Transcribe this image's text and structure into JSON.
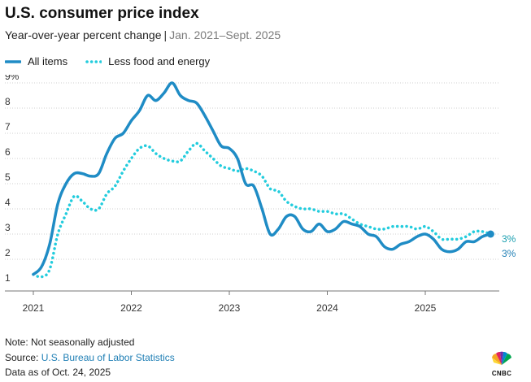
{
  "header": {
    "title": "U.S. consumer price index",
    "subtitle": "Year-over-year percent change",
    "separator": "|",
    "range": "Jan. 2021–Sept. 2025"
  },
  "footer": {
    "note": "Note: Not seasonally adjusted",
    "source_prefix": "Source: ",
    "source_name": "U.S. Bureau of Labor Statistics",
    "data_as_of": "Data as of Oct. 24, 2025",
    "logo_text": "CNBC"
  },
  "chart_data": {
    "type": "line",
    "x_label": "",
    "y_label": "",
    "x_range": [
      "2020-12",
      "2025-11"
    ],
    "y_range": [
      1,
      9
    ],
    "y_tick_labels": [
      "1",
      "2",
      "3",
      "4",
      "5",
      "6",
      "7",
      "8",
      "9%"
    ],
    "x_tick_labels": [
      "2021",
      "2022",
      "2023",
      "2024",
      "2025"
    ],
    "grid": true,
    "legend_position": "top-left",
    "x": [
      "2021-01",
      "2021-02",
      "2021-03",
      "2021-04",
      "2021-05",
      "2021-06",
      "2021-07",
      "2021-08",
      "2021-09",
      "2021-10",
      "2021-11",
      "2021-12",
      "2022-01",
      "2022-02",
      "2022-03",
      "2022-04",
      "2022-05",
      "2022-06",
      "2022-07",
      "2022-08",
      "2022-09",
      "2022-10",
      "2022-11",
      "2022-12",
      "2023-01",
      "2023-02",
      "2023-03",
      "2023-04",
      "2023-05",
      "2023-06",
      "2023-07",
      "2023-08",
      "2023-09",
      "2023-10",
      "2023-11",
      "2023-12",
      "2024-01",
      "2024-02",
      "2024-03",
      "2024-04",
      "2024-05",
      "2024-06",
      "2024-07",
      "2024-08",
      "2024-09",
      "2024-10",
      "2024-11",
      "2024-12",
      "2025-01",
      "2025-02",
      "2025-03",
      "2025-04",
      "2025-05",
      "2025-06",
      "2025-07",
      "2025-08",
      "2025-09"
    ],
    "series": [
      {
        "name": "All items",
        "color": "#1f8cc5",
        "style": "solid",
        "end_label": "3%",
        "values": [
          1.4,
          1.7,
          2.6,
          4.2,
          5.0,
          5.4,
          5.4,
          5.3,
          5.4,
          6.2,
          6.8,
          7.0,
          7.5,
          7.9,
          8.5,
          8.3,
          8.6,
          9.0,
          8.5,
          8.3,
          8.2,
          7.7,
          7.1,
          6.5,
          6.4,
          6.0,
          5.0,
          4.9,
          4.0,
          3.0,
          3.2,
          3.7,
          3.7,
          3.2,
          3.1,
          3.4,
          3.1,
          3.2,
          3.5,
          3.4,
          3.3,
          3.0,
          2.9,
          2.5,
          2.4,
          2.6,
          2.7,
          2.9,
          3.0,
          2.8,
          2.4,
          2.3,
          2.4,
          2.7,
          2.7,
          2.9,
          3.0
        ]
      },
      {
        "name": "Less food and energy",
        "color": "#22ccdd",
        "style": "dotted",
        "end_label": "3%",
        "values": [
          1.4,
          1.3,
          1.6,
          3.0,
          3.8,
          4.5,
          4.3,
          4.0,
          4.0,
          4.6,
          4.9,
          5.5,
          6.0,
          6.4,
          6.5,
          6.2,
          6.0,
          5.9,
          5.9,
          6.3,
          6.6,
          6.3,
          6.0,
          5.7,
          5.6,
          5.5,
          5.6,
          5.5,
          5.3,
          4.8,
          4.7,
          4.3,
          4.1,
          4.0,
          4.0,
          3.9,
          3.9,
          3.8,
          3.8,
          3.6,
          3.4,
          3.3,
          3.2,
          3.2,
          3.3,
          3.3,
          3.3,
          3.2,
          3.3,
          3.1,
          2.8,
          2.8,
          2.8,
          2.9,
          3.1,
          3.1,
          3.0
        ]
      }
    ]
  }
}
